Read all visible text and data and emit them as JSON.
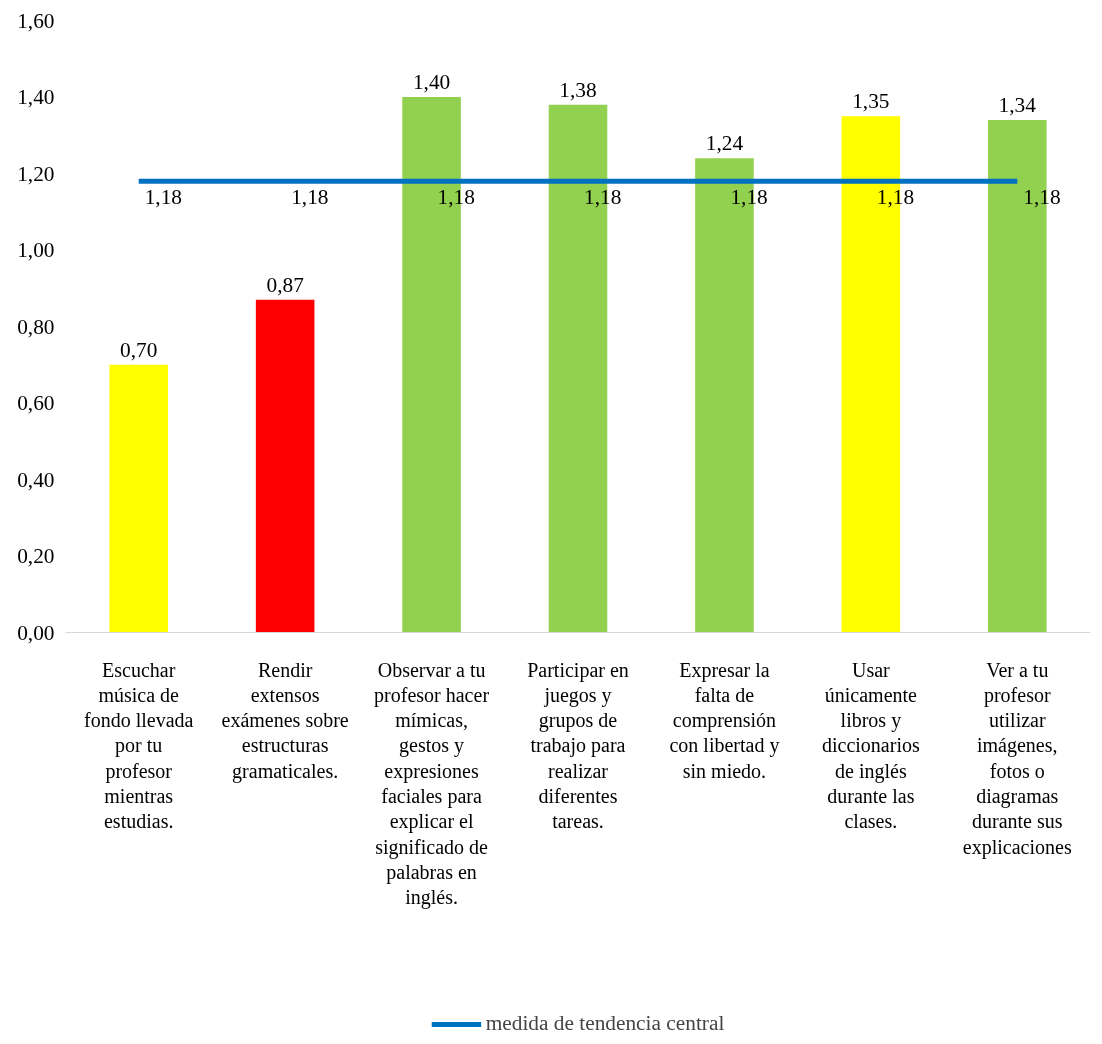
{
  "chart_data": {
    "type": "bar",
    "categories": [
      "Escuchar música de fondo llevada por tu profesor mientras estudias.",
      "Rendir extensos exámenes sobre estructuras gramaticales.",
      "Observar a tu profesor hacer mímicas, gestos y expresiones faciales para explicar el significado de palabras en inglés.",
      "Participar en juegos y grupos de trabajo para realizar diferentes tareas.",
      "Expresar la falta de comprensión con libertad y sin miedo.",
      "Usar únicamente libros y diccionarios de inglés durante las clases.",
      "Ver a tu profesor utilizar imágenes, fotos o diagramas durante sus explicaciones"
    ],
    "series": [
      {
        "colors": [
          "#ffff00",
          "#ff0000",
          "#92d050",
          "#92d050",
          "#92d050",
          "#ffff00",
          "#92d050"
        ],
        "values": [
          0.7,
          0.87,
          1.4,
          1.38,
          1.24,
          1.35,
          1.34
        ],
        "value_labels": [
          "0,70",
          "0,87",
          "1,40",
          "1,38",
          "1,24",
          "1,35",
          "1,34"
        ]
      },
      {
        "type": "line",
        "name": "medida de tendencia central",
        "color": "#0070c0",
        "values": [
          1.18,
          1.18,
          1.18,
          1.18,
          1.18,
          1.18,
          1.18
        ],
        "value_labels": [
          "1,18",
          "1,18",
          "1,18",
          "1,18",
          "1,18",
          "1,18",
          "1,18"
        ]
      }
    ],
    "ylim": [
      0,
      1.6
    ],
    "yticks": [
      {
        "value": 0,
        "label": "0,00"
      },
      {
        "value": 0.2,
        "label": "0,20"
      },
      {
        "value": 0.4,
        "label": "0,40"
      },
      {
        "value": 0.6,
        "label": "0,60"
      },
      {
        "value": 0.8,
        "label": "0,80"
      },
      {
        "value": 1.0,
        "label": "1,00"
      },
      {
        "value": 1.2,
        "label": "1,20"
      },
      {
        "value": 1.4,
        "label": "1,40"
      },
      {
        "value": 1.6,
        "label": "1,60"
      }
    ],
    "grid": false,
    "legend": "bottom"
  }
}
